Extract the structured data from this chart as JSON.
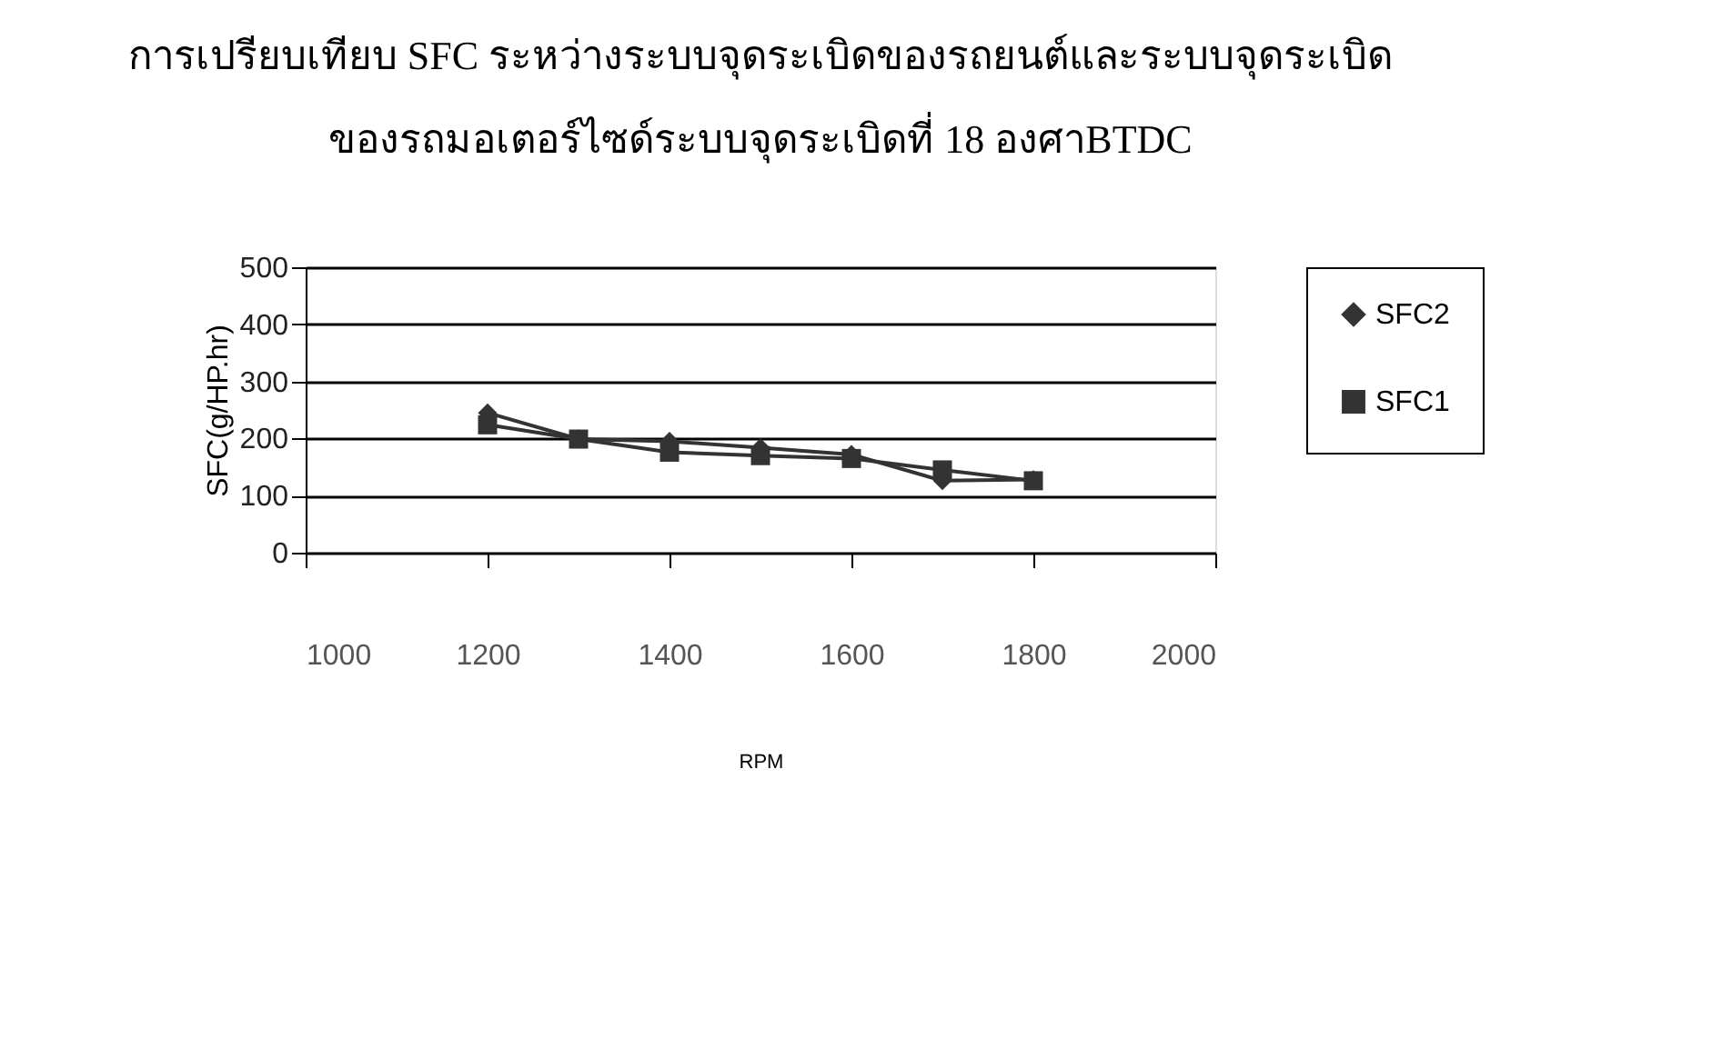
{
  "chart_data": {
    "type": "line",
    "title": "การเปรียบเทียบ SFC ระหว่างระบบจุดระเบิดของรถยนต์และระบบจุดระเบิด\nของรถมอเตอร์ไซด์ระบบจุดระเบิดที่ 18 องศาBTDC",
    "xlabel": "RPM",
    "ylabel": "SFC(g/HP.hr)",
    "x": [
      1200,
      1300,
      1400,
      1500,
      1600,
      1700,
      1800
    ],
    "series": [
      {
        "name": "SFC2",
        "color": "#333333",
        "marker": "diamond",
        "values": [
          245,
          199,
          195,
          184,
          172,
          126,
          128
        ]
      },
      {
        "name": "SFC1",
        "color": "#333333",
        "marker": "square",
        "values": [
          224,
          199,
          176,
          170,
          165,
          145,
          126
        ]
      }
    ],
    "xlim": [
      1000,
      2000
    ],
    "xticks": [
      1000,
      1200,
      1400,
      1600,
      1800,
      2000
    ],
    "ylim": [
      0,
      500
    ],
    "yticks": [
      0,
      100,
      200,
      300,
      400,
      500
    ],
    "grid": "y",
    "legend": "right",
    "line_style": "solid"
  }
}
